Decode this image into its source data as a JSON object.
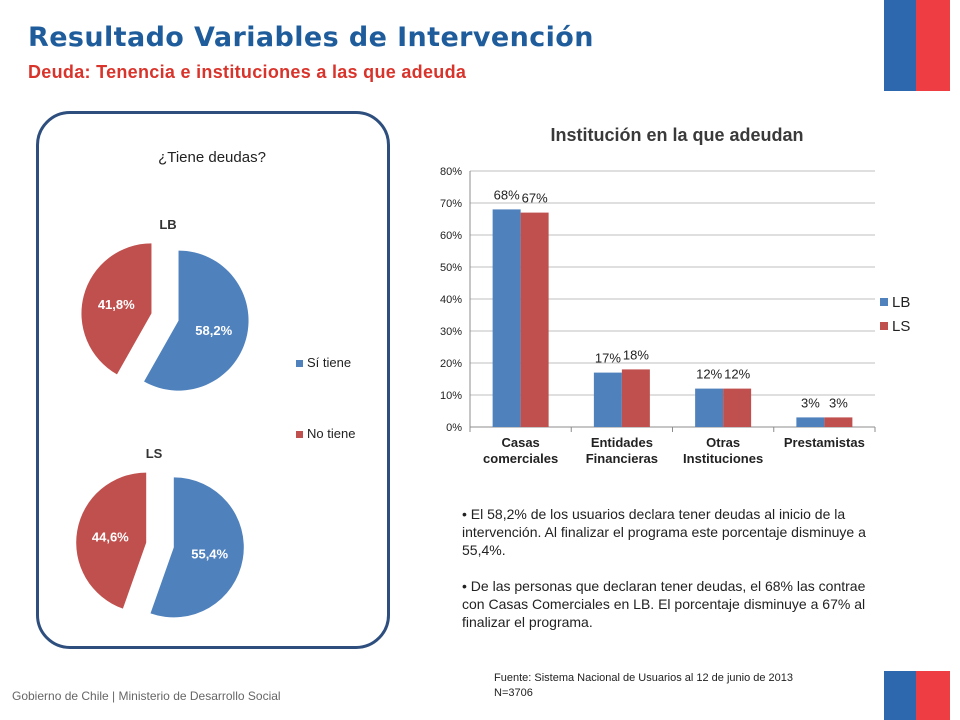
{
  "header": {
    "title": "Resultado Variables de Intervención",
    "subtitle": "Deuda: Tenencia e instituciones a las que adeuda"
  },
  "colors": {
    "title": "#1f5c9c",
    "subtitle": "#d9342b",
    "series_lb": "#4f81bd",
    "series_ls": "#c0504d",
    "pie_si": "#4f81bd",
    "pie_no": "#c0504d",
    "panel_border": "#2e4e7e",
    "flag_blue": "#2d67ae",
    "flag_red": "#ee3e43"
  },
  "chart_data": [
    {
      "type": "pie",
      "title": "¿Tiene deudas?",
      "group": "LB",
      "labels": [
        "Sí tiene",
        "No tiene"
      ],
      "values": [
        58.2,
        41.8
      ],
      "value_labels": [
        "58,2%",
        "41,8%"
      ],
      "legend": "right",
      "exploded": true
    },
    {
      "type": "pie",
      "group": "LS",
      "labels": [
        "Sí tiene",
        "No tiene"
      ],
      "values": [
        55.4,
        44.6
      ],
      "value_labels": [
        "55,4%",
        "44,6%"
      ],
      "exploded": true
    },
    {
      "type": "bar",
      "title": "Institución en la que adeudan",
      "categories": [
        [
          "Casas",
          "comerciales"
        ],
        [
          "Entidades",
          "Financieras"
        ],
        [
          "Otras",
          "Instituciones"
        ],
        [
          "Prestamistas"
        ]
      ],
      "series": [
        {
          "name": "LB",
          "values": [
            68,
            17,
            12,
            3
          ],
          "value_labels": [
            "68%",
            "17%",
            "12%",
            "3%"
          ]
        },
        {
          "name": "LS",
          "values": [
            67,
            18,
            12,
            3
          ],
          "value_labels": [
            "67%",
            "18%",
            "12%",
            "3%"
          ]
        }
      ],
      "ylim": [
        0,
        80
      ],
      "yticks": [
        "0%",
        "10%",
        "20%",
        "30%",
        "40%",
        "50%",
        "60%",
        "70%",
        "80%"
      ],
      "grid": true,
      "legend": "right"
    }
  ],
  "notes": {
    "bullet_1": "El 58,2% de los usuarios declara tener deudas al inicio de la intervención. Al finalizar el programa este porcentaje disminuye a 55,4%.",
    "bullet_2": "De las personas que declaran tener deudas, el 68% las contrae con Casas Comerciales en LB. El porcentaje disminuye a 67% al finalizar el programa."
  },
  "source": {
    "line_1": "Fuente: Sistema Nacional de Usuarios al 12 de junio de 2013",
    "line_2": "N=3706"
  },
  "footer": {
    "text": "Gobierno de Chile | Ministerio de Desarrollo Social"
  }
}
